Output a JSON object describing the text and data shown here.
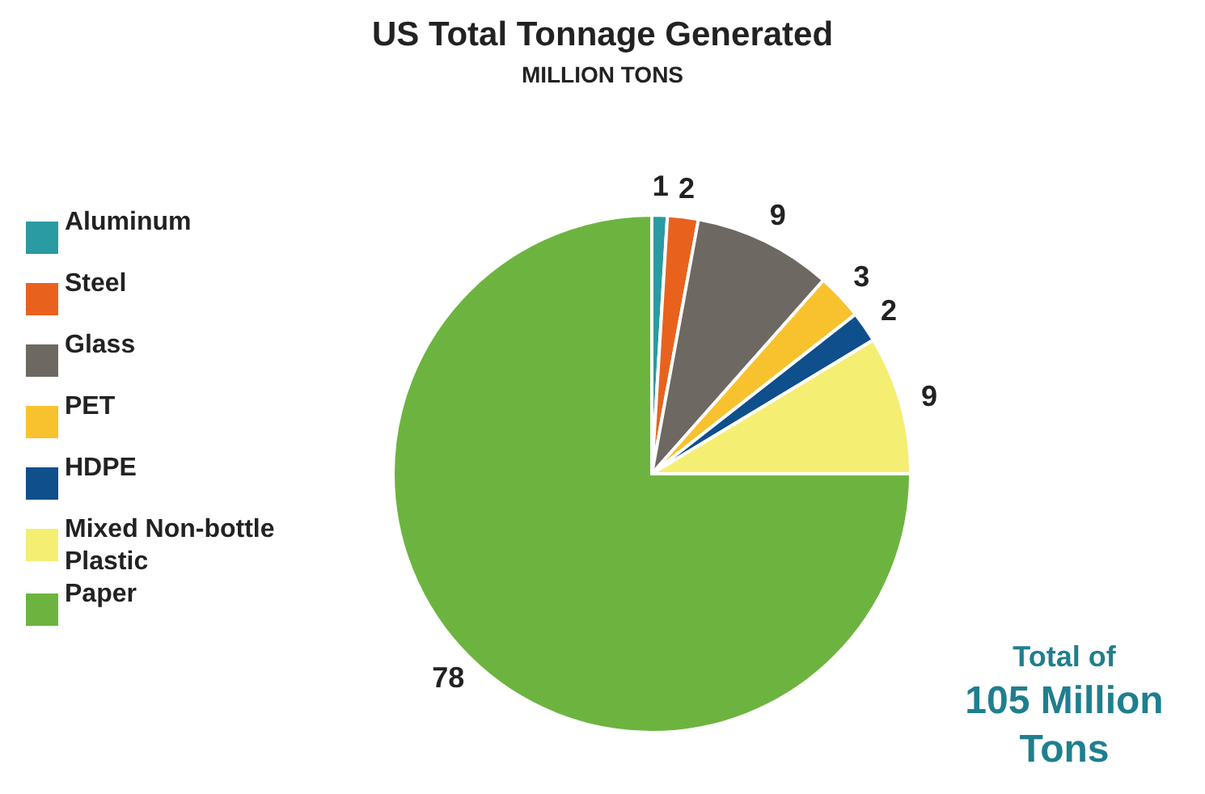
{
  "chart_data": {
    "type": "pie",
    "title": "US Total Tonnage Generated",
    "subtitle": "MILLION TONS",
    "categories": [
      "Aluminum",
      "Steel",
      "Glass",
      "PET",
      "HDPE",
      "Mixed Non-bottle Plastic",
      "Paper"
    ],
    "values": [
      1,
      2,
      9,
      3,
      2,
      9,
      78
    ],
    "colors": [
      "#2a9aa3",
      "#e8621e",
      "#6e6863",
      "#f8c22f",
      "#0e4f8c",
      "#f4ee72",
      "#6cb43f"
    ],
    "data_labels": true,
    "legend": "left",
    "annotations": [
      "Total of",
      "105 Million Tons"
    ]
  }
}
